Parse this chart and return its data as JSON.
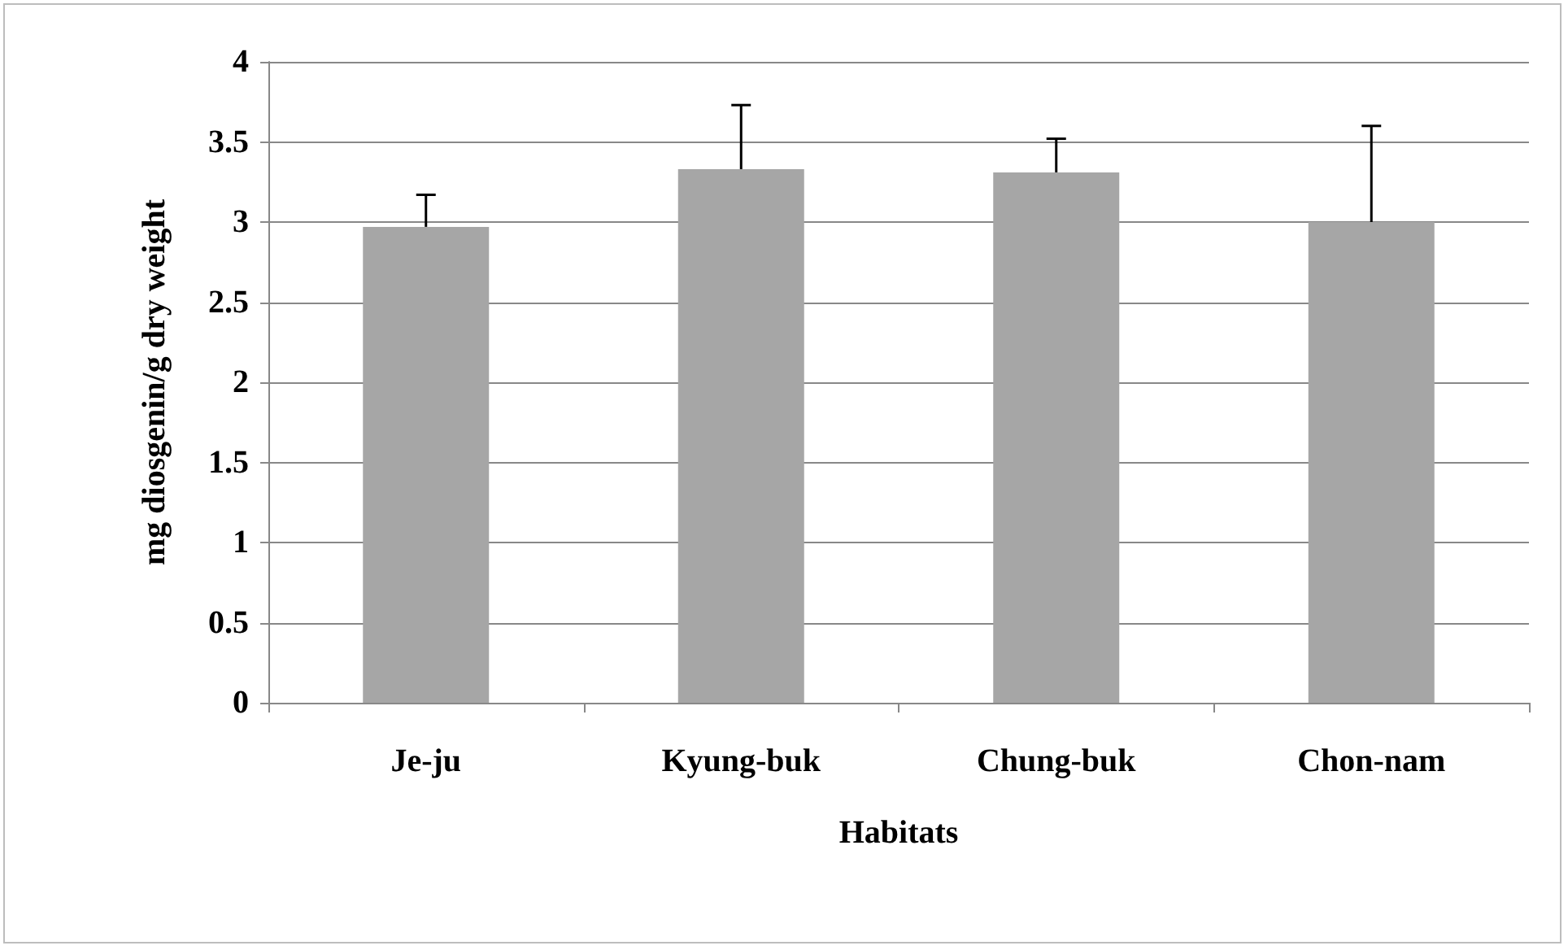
{
  "chart_data": {
    "type": "bar",
    "xlabel": "Habitats",
    "ylabel": "mg diosgenin/g dry weight",
    "categories": [
      "Je-ju",
      "Kyung-buk",
      "Chung-buk",
      "Chon-nam"
    ],
    "values": [
      2.97,
      3.33,
      3.31,
      3.0
    ],
    "errors": [
      [
        2.97,
        3.17
      ],
      [
        3.33,
        3.73
      ],
      [
        3.31,
        3.52
      ],
      [
        3.0,
        3.6
      ]
    ],
    "color": "#a6a6a6",
    "ylim": [
      0,
      4
    ],
    "yticks": [
      0,
      0.5,
      1,
      1.5,
      2,
      2.5,
      3,
      3.5,
      4
    ],
    "grid": "y"
  }
}
